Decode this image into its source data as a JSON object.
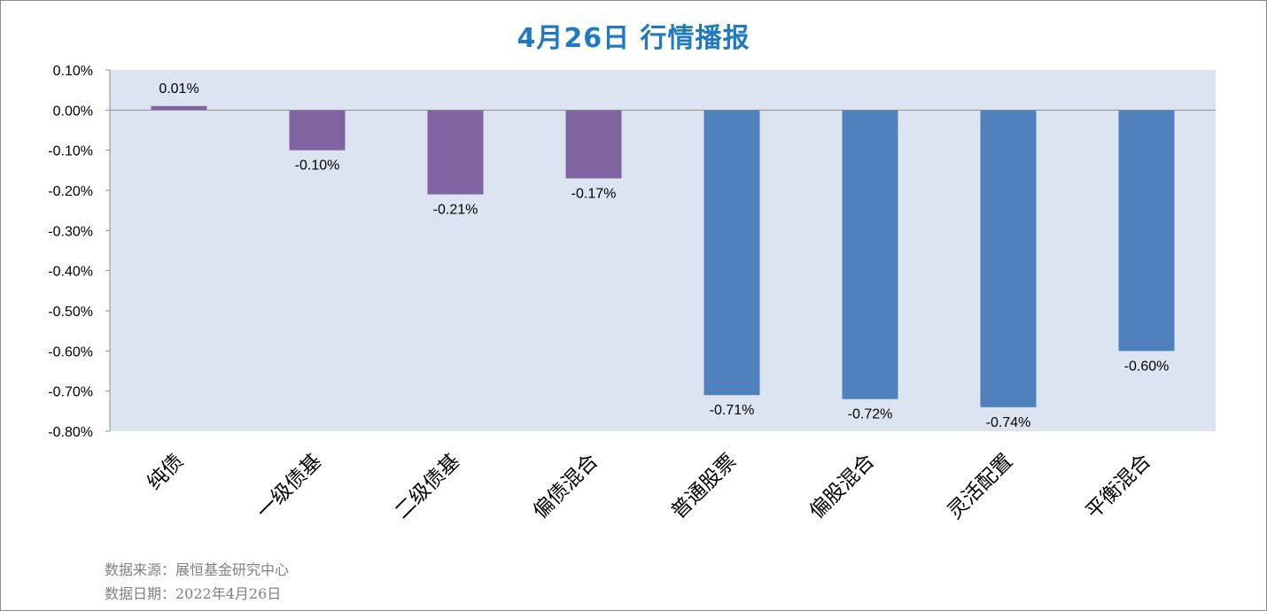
{
  "title": "4月26日  行情播报",
  "footnotes": {
    "source": "数据来源：展恒基金研究中心",
    "date": "数据日期：2022年4月26日"
  },
  "colors": {
    "plot_background": "#dbe4f0",
    "bond_bar": "#8064a2",
    "equity_bar": "#4f81bd",
    "title": "#1f7ac0"
  },
  "chart_data": {
    "type": "bar",
    "title": "4月26日  行情播报",
    "xlabel": "",
    "ylabel": "",
    "categories": [
      "纯债",
      "一级债基",
      "二级债基",
      "偏债混合",
      "普通股票",
      "偏股混合",
      "灵活配置",
      "平衡混合"
    ],
    "values": [
      0.01,
      -0.1,
      -0.21,
      -0.17,
      -0.71,
      -0.72,
      -0.74,
      -0.6
    ],
    "value_labels": [
      "0.01%",
      "-0.10%",
      "-0.21%",
      "-0.17%",
      "-0.71%",
      "-0.72%",
      "-0.74%",
      "-0.60%"
    ],
    "bar_colors": [
      "#8064a2",
      "#8064a2",
      "#8064a2",
      "#8064a2",
      "#4f81bd",
      "#4f81bd",
      "#4f81bd",
      "#4f81bd"
    ],
    "ylim": [
      -0.8,
      0.1
    ],
    "yticks": [
      0.1,
      0.0,
      -0.1,
      -0.2,
      -0.3,
      -0.4,
      -0.5,
      -0.6,
      -0.7,
      -0.8
    ],
    "ytick_labels": [
      "0.10%",
      "0.00%",
      "-0.10%",
      "-0.20%",
      "-0.30%",
      "-0.40%",
      "-0.50%",
      "-0.60%",
      "-0.70%",
      "-0.80%"
    ],
    "grid": false,
    "legend": "none",
    "unit": "%"
  }
}
